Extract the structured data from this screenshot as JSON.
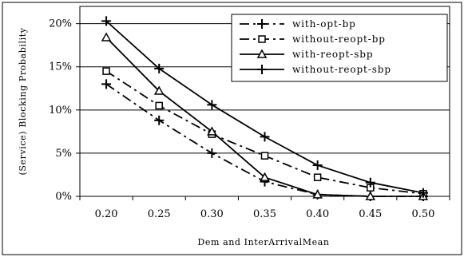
{
  "chart_data": {
    "type": "line",
    "title": "",
    "xlabel": "Dem and InterArrivalMean",
    "ylabel": "(Service) Blocking Probability",
    "x": [
      0.2,
      0.25,
      0.3,
      0.35,
      0.4,
      0.45,
      0.5
    ],
    "x_tick_labels": [
      "0.20",
      "0.25",
      "0.30",
      "0.35",
      "0.40",
      "0.45",
      "0.50"
    ],
    "y_tick_labels": [
      "0%",
      "5%",
      "10%",
      "15%",
      "20%"
    ],
    "ylim": [
      0,
      22
    ],
    "y_unit": "percent",
    "grid": "horizontal",
    "legend_position": "top-right",
    "series": [
      {
        "name": "with-opt-bp",
        "line_style": "dash-dot",
        "marker": "plus",
        "values": [
          13.0,
          8.8,
          5.0,
          1.7,
          0.2,
          0.0,
          0.0
        ]
      },
      {
        "name": "without-reopt-bp",
        "line_style": "dash-dot",
        "marker": "square",
        "values": [
          14.5,
          10.5,
          7.2,
          4.7,
          2.2,
          1.0,
          0.3
        ]
      },
      {
        "name": "with-reopt-sbp",
        "line_style": "solid",
        "marker": "triangle",
        "values": [
          18.4,
          12.2,
          7.5,
          2.2,
          0.2,
          0.0,
          0.0
        ]
      },
      {
        "name": "without-reopt-sbp",
        "line_style": "solid",
        "marker": "plus",
        "values": [
          20.3,
          14.8,
          10.6,
          6.9,
          3.6,
          1.6,
          0.4
        ]
      }
    ]
  }
}
